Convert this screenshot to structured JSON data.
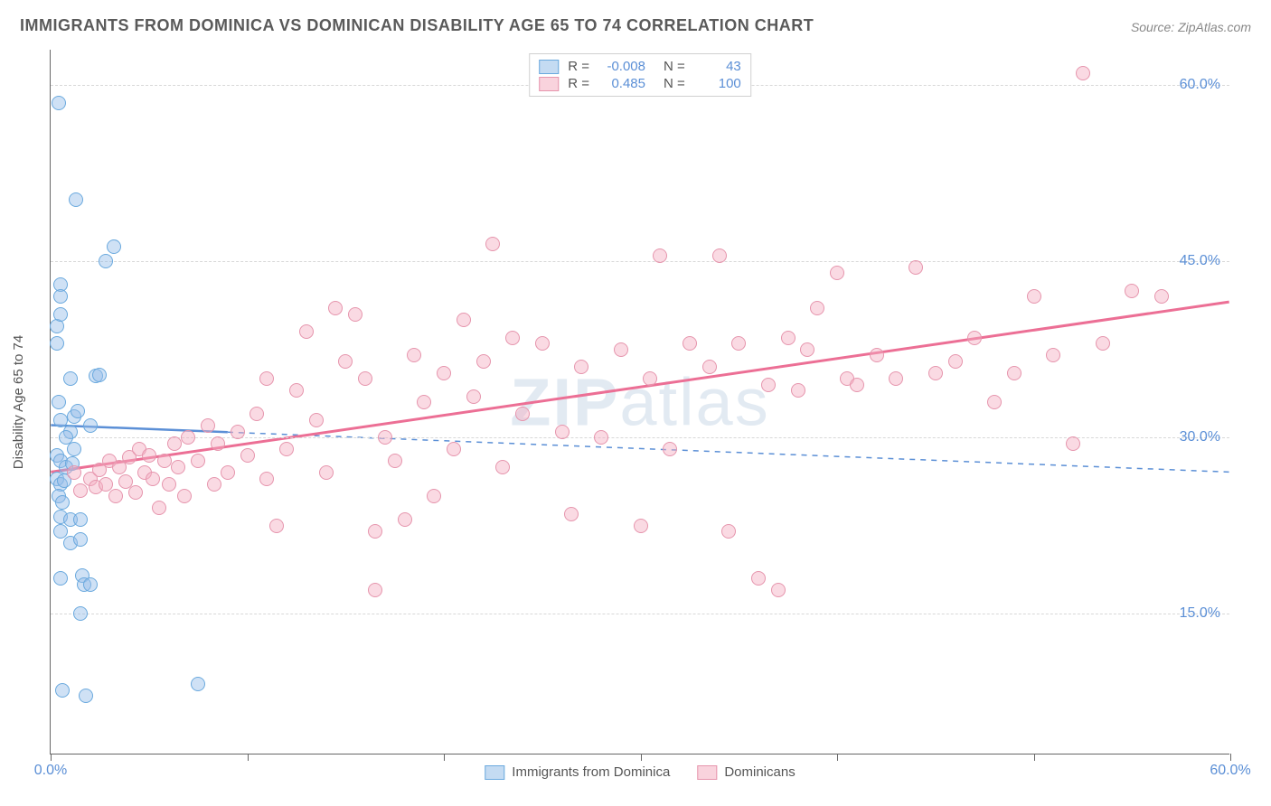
{
  "title": "IMMIGRANTS FROM DOMINICA VS DOMINICAN DISABILITY AGE 65 TO 74 CORRELATION CHART",
  "source": "Source: ZipAtlas.com",
  "watermark": {
    "bold": "ZIP",
    "light": "atlas"
  },
  "y_axis_title": "Disability Age 65 to 74",
  "chart": {
    "type": "scatter",
    "background_color": "#ffffff",
    "grid_color": "#d8d8d8",
    "axis_color": "#666666",
    "xlim": [
      0,
      60
    ],
    "ylim": [
      3,
      63
    ],
    "x_ticks": [
      0,
      10,
      20,
      30,
      40,
      50,
      60
    ],
    "x_tick_labels": {
      "0": "0.0%",
      "60": "60.0%"
    },
    "y_ticks": [
      15,
      30,
      45,
      60
    ],
    "y_tick_labels": {
      "15": "15.0%",
      "30": "30.0%",
      "45": "45.0%",
      "60": "60.0%"
    },
    "marker_radius": 8,
    "series": [
      {
        "name": "Immigrants from Dominica",
        "color_fill": "rgba(148,189,232,0.45)",
        "color_stroke": "#6aa9de",
        "R": "-0.008",
        "N": "43",
        "trend": {
          "x1": 0,
          "y1": 31.0,
          "x2": 60,
          "y2": 27.0,
          "solid_until_x": 9,
          "line_width": 2.5
        },
        "points": [
          [
            0.4,
            58.5
          ],
          [
            0.5,
            43.0
          ],
          [
            0.5,
            42.0
          ],
          [
            1.3,
            50.2
          ],
          [
            2.8,
            45.0
          ],
          [
            3.2,
            46.2
          ],
          [
            0.3,
            39.5
          ],
          [
            0.3,
            38.0
          ],
          [
            1.0,
            35.0
          ],
          [
            2.3,
            35.2
          ],
          [
            2.5,
            35.3
          ],
          [
            0.4,
            33.0
          ],
          [
            0.5,
            31.5
          ],
          [
            1.2,
            31.8
          ],
          [
            1.4,
            32.2
          ],
          [
            1.0,
            30.5
          ],
          [
            0.8,
            30.0
          ],
          [
            0.3,
            28.5
          ],
          [
            0.5,
            28.0
          ],
          [
            0.8,
            27.5
          ],
          [
            1.1,
            27.8
          ],
          [
            0.3,
            26.5
          ],
          [
            0.5,
            26.0
          ],
          [
            0.7,
            26.3
          ],
          [
            0.4,
            25.0
          ],
          [
            0.6,
            24.5
          ],
          [
            0.5,
            23.2
          ],
          [
            1.0,
            23.0
          ],
          [
            1.5,
            23.0
          ],
          [
            0.5,
            22.0
          ],
          [
            1.0,
            21.0
          ],
          [
            1.5,
            21.3
          ],
          [
            0.5,
            18.0
          ],
          [
            1.6,
            18.2
          ],
          [
            1.7,
            17.5
          ],
          [
            2.0,
            17.5
          ],
          [
            1.5,
            15.0
          ],
          [
            0.6,
            8.5
          ],
          [
            1.8,
            8.0
          ],
          [
            7.5,
            9.0
          ],
          [
            0.5,
            40.5
          ],
          [
            2.0,
            31.0
          ],
          [
            1.2,
            29.0
          ]
        ]
      },
      {
        "name": "Dominicans",
        "color_fill": "rgba(244,174,193,0.45)",
        "color_stroke": "#e695ad",
        "R": "0.485",
        "N": "100",
        "trend": {
          "x1": 0,
          "y1": 27.0,
          "x2": 60,
          "y2": 41.5,
          "solid_until_x": 60,
          "line_width": 3
        },
        "points": [
          [
            1.2,
            27.0
          ],
          [
            1.5,
            25.5
          ],
          [
            2.0,
            26.5
          ],
          [
            2.3,
            25.8
          ],
          [
            2.5,
            27.2
          ],
          [
            2.8,
            26.0
          ],
          [
            3.0,
            28.0
          ],
          [
            3.3,
            25.0
          ],
          [
            3.5,
            27.5
          ],
          [
            3.8,
            26.2
          ],
          [
            4.0,
            28.3
          ],
          [
            4.3,
            25.3
          ],
          [
            4.5,
            29.0
          ],
          [
            4.8,
            27.0
          ],
          [
            5.0,
            28.5
          ],
          [
            5.2,
            26.5
          ],
          [
            5.5,
            24.0
          ],
          [
            5.8,
            28.0
          ],
          [
            6.0,
            26.0
          ],
          [
            6.3,
            29.5
          ],
          [
            6.5,
            27.5
          ],
          [
            6.8,
            25.0
          ],
          [
            7.0,
            30.0
          ],
          [
            7.5,
            28.0
          ],
          [
            8.0,
            31.0
          ],
          [
            8.3,
            26.0
          ],
          [
            8.5,
            29.5
          ],
          [
            9.0,
            27.0
          ],
          [
            9.5,
            30.5
          ],
          [
            10.0,
            28.5
          ],
          [
            10.5,
            32.0
          ],
          [
            11.0,
            26.5
          ],
          [
            11.5,
            22.5
          ],
          [
            12.0,
            29.0
          ],
          [
            12.5,
            34.0
          ],
          [
            13.0,
            39.0
          ],
          [
            13.5,
            31.5
          ],
          [
            14.0,
            27.0
          ],
          [
            14.5,
            41.0
          ],
          [
            15.0,
            36.5
          ],
          [
            15.5,
            40.5
          ],
          [
            16.0,
            35.0
          ],
          [
            16.5,
            22.0
          ],
          [
            17.0,
            30.0
          ],
          [
            17.5,
            28.0
          ],
          [
            18.0,
            23.0
          ],
          [
            18.5,
            37.0
          ],
          [
            19.0,
            33.0
          ],
          [
            19.5,
            25.0
          ],
          [
            20.0,
            35.5
          ],
          [
            20.5,
            29.0
          ],
          [
            21.0,
            40.0
          ],
          [
            21.5,
            33.5
          ],
          [
            22.0,
            36.5
          ],
          [
            22.5,
            46.5
          ],
          [
            23.0,
            27.5
          ],
          [
            23.5,
            38.5
          ],
          [
            24.0,
            32.0
          ],
          [
            25.0,
            38.0
          ],
          [
            26.0,
            30.5
          ],
          [
            26.5,
            23.5
          ],
          [
            27.0,
            36.0
          ],
          [
            28.0,
            30.0
          ],
          [
            29.0,
            37.5
          ],
          [
            30.0,
            22.5
          ],
          [
            30.5,
            35.0
          ],
          [
            31.0,
            45.5
          ],
          [
            31.5,
            29.0
          ],
          [
            32.5,
            38.0
          ],
          [
            33.5,
            36.0
          ],
          [
            34.0,
            45.5
          ],
          [
            34.5,
            22.0
          ],
          [
            35.0,
            38.0
          ],
          [
            36.0,
            18.0
          ],
          [
            36.5,
            34.5
          ],
          [
            37.0,
            17.0
          ],
          [
            37.5,
            38.5
          ],
          [
            38.0,
            34.0
          ],
          [
            38.5,
            37.5
          ],
          [
            39.0,
            41.0
          ],
          [
            40.0,
            44.0
          ],
          [
            40.5,
            35.0
          ],
          [
            41.0,
            34.5
          ],
          [
            42.0,
            37.0
          ],
          [
            43.0,
            35.0
          ],
          [
            44.0,
            44.5
          ],
          [
            45.0,
            35.5
          ],
          [
            46.0,
            36.5
          ],
          [
            47.0,
            38.5
          ],
          [
            48.0,
            33.0
          ],
          [
            49.0,
            35.5
          ],
          [
            50.0,
            42.0
          ],
          [
            51.0,
            37.0
          ],
          [
            52.0,
            29.5
          ],
          [
            52.5,
            61.0
          ],
          [
            53.5,
            38.0
          ],
          [
            55.0,
            42.5
          ],
          [
            56.5,
            42.0
          ],
          [
            11.0,
            35.0
          ],
          [
            16.5,
            17.0
          ]
        ]
      }
    ]
  },
  "colors": {
    "blue_text": "#5b8fd6",
    "gray_text": "#5a5a5a"
  }
}
